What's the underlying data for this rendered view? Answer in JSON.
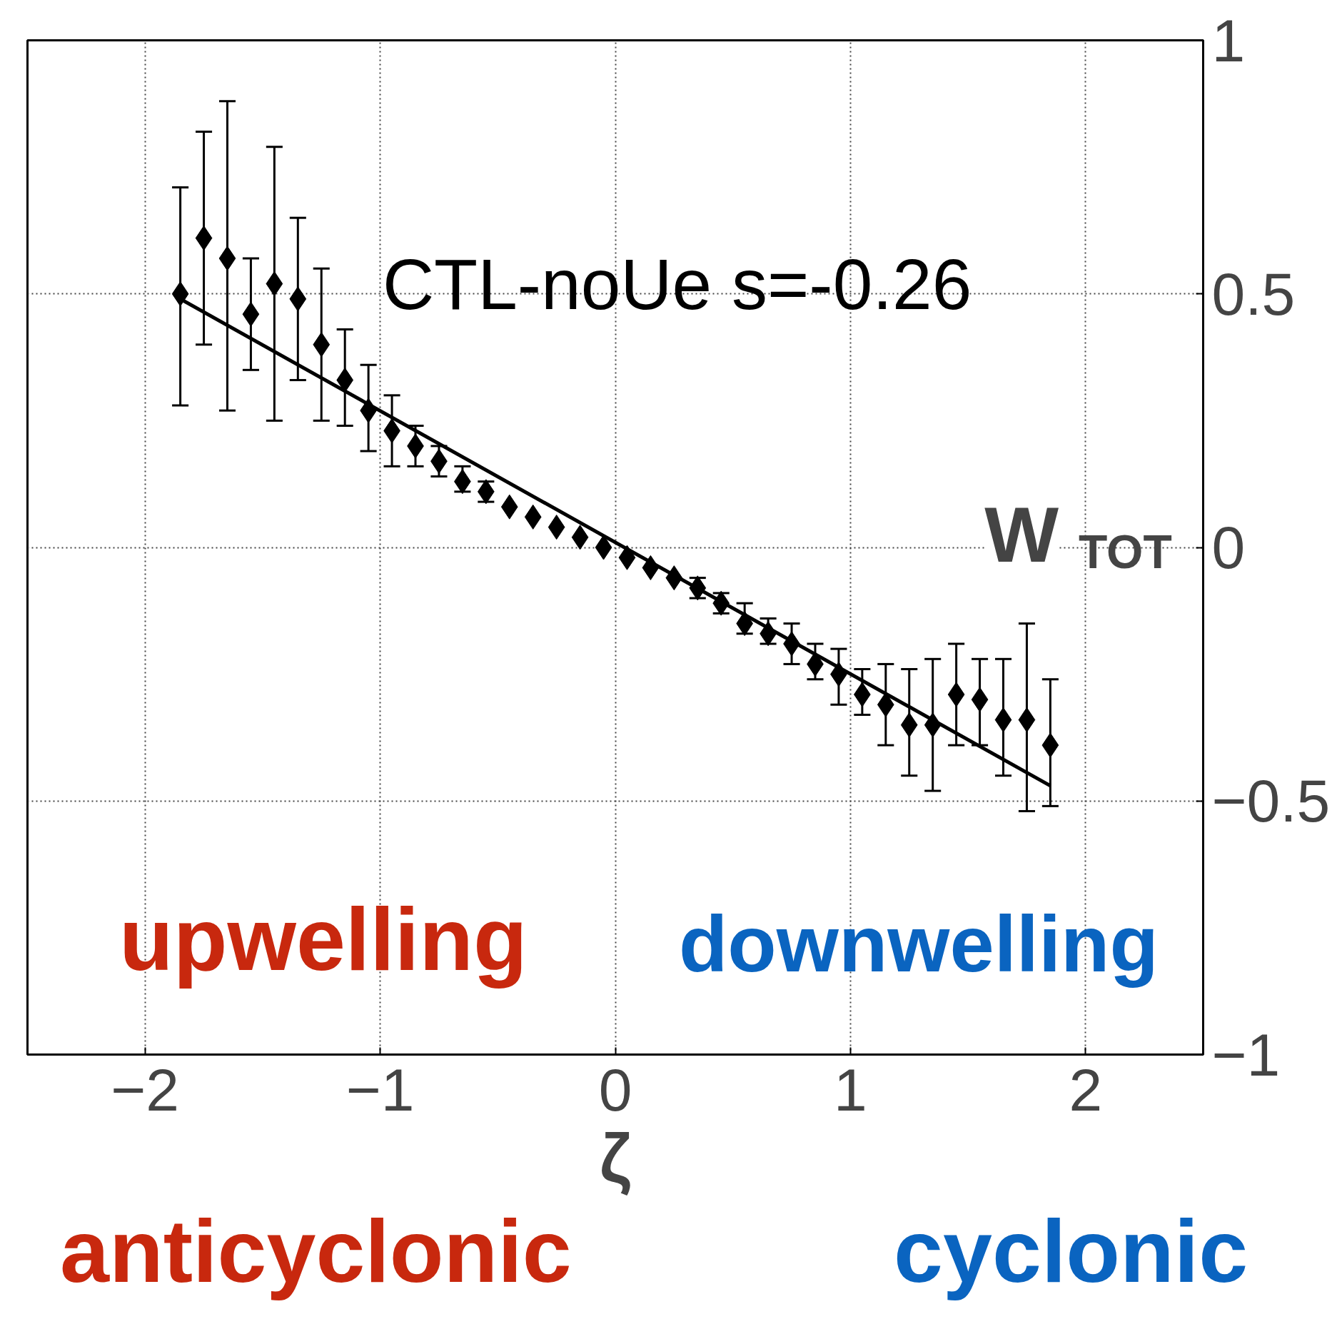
{
  "chart_data": {
    "type": "scatter",
    "xlabel": "ζ",
    "ylabel": "W$_{TOT}$",
    "xlim": [
      -2.5,
      2.5
    ],
    "xticks": [
      -2,
      -1,
      0,
      1,
      2
    ],
    "ylim": [
      -1,
      1
    ],
    "yticks": [
      -1,
      -0.5,
      0,
      0.5,
      1
    ],
    "grid": true,
    "annotations": [
      "CTL-noUe s=-0.26",
      "upwelling",
      "downwelling",
      "anticyclonic",
      "cyclonic"
    ],
    "series": [
      {
        "color": "#000000",
        "marker": "diamond",
        "x": [
          -1.85,
          -1.75,
          -1.65,
          -1.55,
          -1.45,
          -1.35,
          -1.25,
          -1.15,
          -1.05,
          -0.95,
          -0.85,
          -0.75,
          -0.65,
          -0.55,
          -0.45,
          -0.35,
          -0.25,
          -0.15,
          -0.05,
          0.05,
          0.15,
          0.25,
          0.35,
          0.45,
          0.55,
          0.65,
          0.75,
          0.85,
          0.95,
          1.05,
          1.15,
          1.25,
          1.35,
          1.45,
          1.55,
          1.65,
          1.75,
          1.85
        ],
        "values": [
          0.5,
          0.61,
          0.57,
          0.46,
          0.52,
          0.49,
          0.4,
          0.33,
          0.27,
          0.23,
          0.2,
          0.17,
          0.13,
          0.11,
          0.08,
          0.06,
          0.04,
          0.02,
          0.0,
          -0.02,
          -0.04,
          -0.06,
          -0.08,
          -0.11,
          -0.15,
          -0.17,
          -0.19,
          -0.23,
          -0.25,
          -0.29,
          -0.31,
          -0.35,
          -0.35,
          -0.29,
          -0.3,
          -0.34,
          -0.34,
          -0.39
        ],
        "errors": [
          [
            0.28,
            0.71
          ],
          [
            0.4,
            0.82
          ],
          [
            0.27,
            0.88
          ],
          [
            0.35,
            0.57
          ],
          [
            0.25,
            0.79
          ],
          [
            0.33,
            0.65
          ],
          [
            0.25,
            0.55
          ],
          [
            0.24,
            0.43
          ],
          [
            0.19,
            0.36
          ],
          [
            0.16,
            0.3
          ],
          [
            0.16,
            0.24
          ],
          [
            0.14,
            0.2
          ],
          [
            0.11,
            0.16
          ],
          [
            0.09,
            0.13
          ],
          null,
          null,
          null,
          null,
          null,
          null,
          null,
          null,
          [
            -0.1,
            -0.06
          ],
          [
            -0.13,
            -0.09
          ],
          [
            -0.17,
            -0.11
          ],
          [
            -0.19,
            -0.14
          ],
          [
            -0.23,
            -0.15
          ],
          [
            -0.26,
            -0.19
          ],
          [
            -0.31,
            -0.2
          ],
          [
            -0.33,
            -0.24
          ],
          [
            -0.39,
            -0.23
          ],
          [
            -0.45,
            -0.24
          ],
          [
            -0.48,
            -0.22
          ],
          [
            -0.39,
            -0.19
          ],
          [
            -0.39,
            -0.22
          ],
          [
            -0.45,
            -0.22
          ],
          [
            -0.52,
            -0.15
          ],
          [
            -0.51,
            -0.26
          ]
        ]
      },
      {
        "type": "line",
        "color": "#000000",
        "x": [
          -1.85,
          1.85
        ],
        "values": [
          0.49,
          -0.47
        ]
      }
    ]
  }
}
